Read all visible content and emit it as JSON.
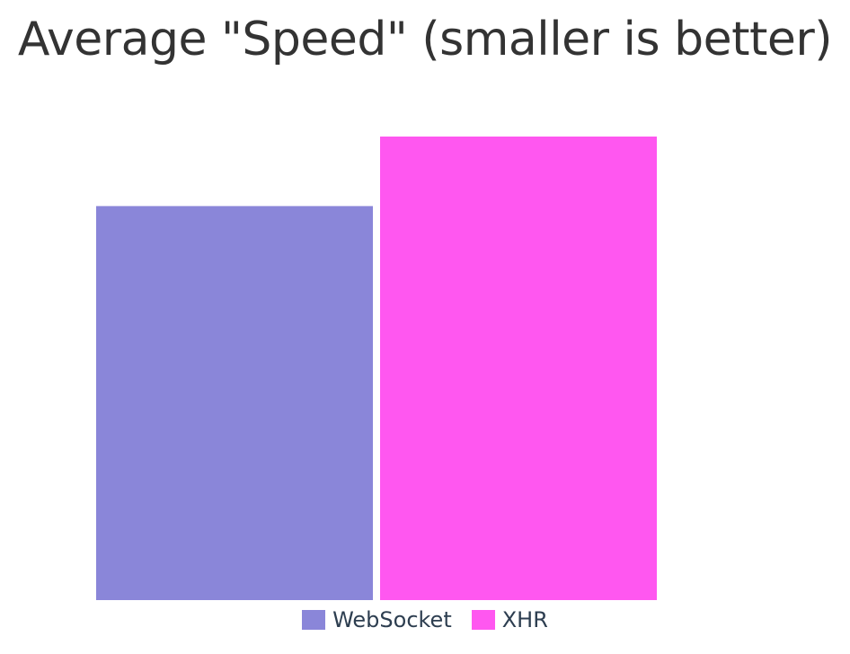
{
  "chart_data": {
    "type": "bar",
    "title": "Average \"Speed\" (smaller is better)",
    "xlabel": "",
    "ylabel": "",
    "grid": false,
    "legend_position": "bottom",
    "series": [
      {
        "name": "WebSocket",
        "values": [
          85
        ],
        "color": "#8a86d9"
      },
      {
        "name": "XHR",
        "values": [
          100
        ],
        "color": "#ff57f0"
      }
    ],
    "ylim": [
      0,
      100
    ]
  }
}
